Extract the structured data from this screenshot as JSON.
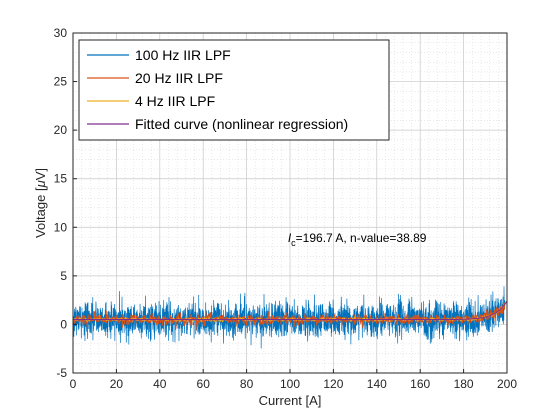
{
  "chart_data": {
    "type": "line",
    "title": "",
    "xlabel": "Current [A]",
    "ylabel": "Voltage [μV]",
    "xlim": [
      0,
      200
    ],
    "ylim": [
      -5,
      30
    ],
    "xticks": [
      0,
      20,
      40,
      60,
      80,
      100,
      120,
      140,
      160,
      180,
      200
    ],
    "yticks": [
      -5,
      0,
      5,
      10,
      15,
      20,
      25,
      30
    ],
    "grid": true,
    "minor_grid": true,
    "legend_position": "top-left",
    "annotation": {
      "ic_symbol": "I",
      "ic_subscript": "c",
      "text": "=196.7 A, n-value=38.89",
      "x": 99,
      "y": 8.5
    },
    "fit_params": {
      "ic": 196.7,
      "n": 38.89,
      "ec": 1.0,
      "offset": 0.5
    },
    "series": [
      {
        "name": "100 Hz IIR LPF",
        "color": "#0072BD",
        "noise_amplitude": 1.2,
        "x_start": 0,
        "x_end": 199,
        "samples": 2600
      },
      {
        "name": "20 Hz IIR LPF",
        "color": "#D95319",
        "noise_amplitude": 0.35,
        "x_start": 0,
        "x_end": 199,
        "samples": 1400
      },
      {
        "name": "4 Hz IIR LPF",
        "color": "#EDB120",
        "noise_amplitude": 0.12,
        "x_start": 0,
        "x_end": 199,
        "samples": 600
      },
      {
        "name": "Fitted curve (nonlinear regression)",
        "color": "#7E2F8E",
        "noise_amplitude": 0,
        "x_start": 0,
        "x_end": 200,
        "samples": 300
      }
    ]
  }
}
